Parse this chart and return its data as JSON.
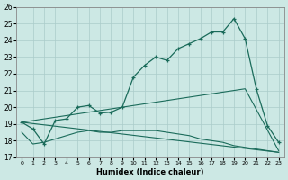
{
  "xlabel": "Humidex (Indice chaleur)",
  "bg_color": "#cce8e4",
  "grid_color": "#aaccca",
  "line_color": "#1a6b5a",
  "xlim": [
    -0.5,
    23.5
  ],
  "ylim": [
    17.0,
    26.0
  ],
  "xticks": [
    0,
    1,
    2,
    3,
    4,
    5,
    6,
    7,
    8,
    9,
    10,
    11,
    12,
    13,
    14,
    15,
    16,
    17,
    18,
    19,
    20,
    21,
    22,
    23
  ],
  "yticks": [
    17,
    18,
    19,
    20,
    21,
    22,
    23,
    24,
    25,
    26
  ],
  "curve1_x": [
    0,
    1,
    2,
    3,
    4,
    5,
    6,
    7,
    8,
    9,
    10,
    11,
    12,
    13,
    14,
    15,
    16,
    17,
    18,
    19,
    20,
    21,
    22,
    23
  ],
  "curve1_y": [
    19.1,
    18.7,
    17.8,
    19.2,
    19.3,
    20.0,
    20.1,
    19.65,
    19.7,
    20.0,
    21.8,
    22.5,
    23.0,
    22.8,
    23.5,
    23.8,
    24.1,
    24.5,
    24.5,
    25.3,
    24.1,
    21.1,
    18.9,
    17.9
  ],
  "curve2_x": [
    0,
    19,
    20,
    23
  ],
  "curve2_y": [
    19.1,
    21.0,
    21.1,
    17.4
  ],
  "curve3_x": [
    0,
    1,
    2,
    3,
    4,
    5,
    6,
    7,
    8,
    9,
    10,
    11,
    12,
    13,
    14,
    15,
    16,
    17,
    18,
    19,
    20,
    21,
    22,
    23
  ],
  "curve3_y": [
    18.5,
    17.8,
    17.9,
    18.1,
    18.3,
    18.5,
    18.6,
    18.5,
    18.5,
    18.6,
    18.6,
    18.6,
    18.6,
    18.5,
    18.4,
    18.3,
    18.1,
    18.0,
    17.9,
    17.7,
    17.6,
    17.5,
    17.4,
    17.3
  ],
  "curve4_x": [
    0,
    23
  ],
  "curve4_y": [
    19.1,
    17.3
  ]
}
